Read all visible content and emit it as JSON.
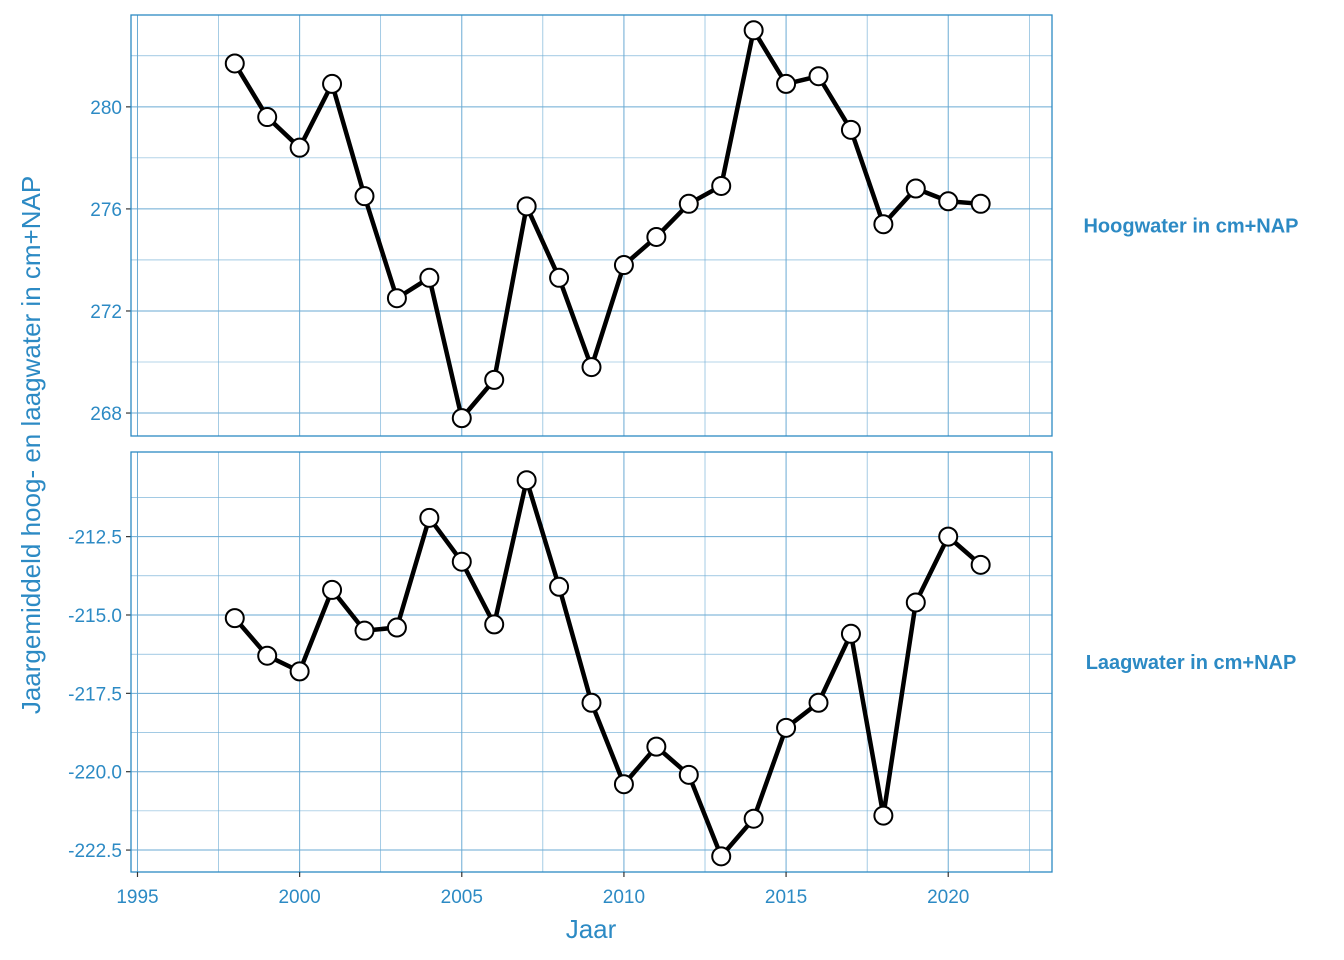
{
  "colors": {
    "accent": "#2c8ac4",
    "grid": "#6aaad3",
    "line": "#000000",
    "marker_fill": "#ffffff",
    "marker_stroke": "#000000",
    "background": "#ffffff"
  },
  "chart_data": {
    "type": "line",
    "xlabel": "Jaar",
    "ylabel": "Jaargemiddeld hoog- en laagwater in cm+NAP",
    "xlim": [
      1994.8,
      2023.2
    ],
    "x_ticks": [
      1995,
      2000,
      2005,
      2010,
      2015,
      2020
    ],
    "x_tick_labels": [
      "1995",
      "2000",
      "2005",
      "2010",
      "2015",
      "2020"
    ],
    "grid": true,
    "strip_placement": "right",
    "x": [
      1998,
      1999,
      2000,
      2001,
      2002,
      2003,
      2004,
      2005,
      2006,
      2007,
      2008,
      2009,
      2010,
      2011,
      2012,
      2013,
      2014,
      2015,
      2016,
      2017,
      2018,
      2019,
      2020,
      2021
    ],
    "panels": [
      {
        "label": "Hoogwater in cm+NAP",
        "ylim": [
          267.1,
          283.6
        ],
        "y_ticks": [
          268,
          272,
          276,
          280
        ],
        "y_tick_labels": [
          "268",
          "272",
          "276",
          "280"
        ],
        "values": [
          281.7,
          279.6,
          278.4,
          280.9,
          276.5,
          272.5,
          273.3,
          267.8,
          269.3,
          276.1,
          273.3,
          269.8,
          273.8,
          274.9,
          276.2,
          276.9,
          283.0,
          280.9,
          281.2,
          279.1,
          275.4,
          276.8,
          276.3,
          276.2
        ]
      },
      {
        "label": "Laagwater in cm+NAP",
        "ylim": [
          -223.2,
          -209.8
        ],
        "y_ticks": [
          -222.5,
          -220.0,
          -217.5,
          -215.0,
          -212.5
        ],
        "y_tick_labels": [
          "-222.5",
          "-220.0",
          "-217.5",
          "-215.0",
          "-212.5"
        ],
        "values": [
          -215.1,
          -216.3,
          -216.8,
          -214.2,
          -215.5,
          -215.4,
          -211.9,
          -213.3,
          -215.3,
          -210.7,
          -214.1,
          -217.8,
          -220.4,
          -219.2,
          -220.1,
          -222.7,
          -221.5,
          -218.6,
          -217.8,
          -215.6,
          -221.4,
          -214.6,
          -212.5,
          -213.4
        ]
      }
    ]
  }
}
